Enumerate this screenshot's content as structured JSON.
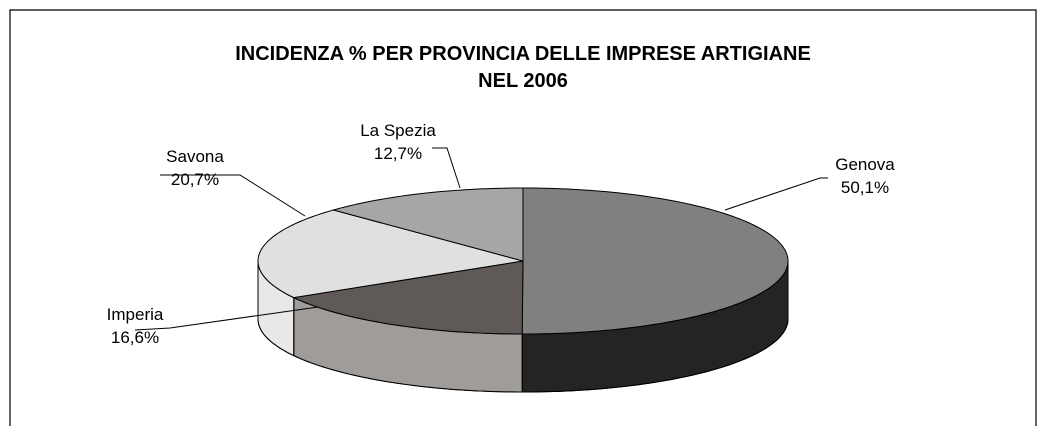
{
  "chart_data": {
    "type": "pie",
    "title": [
      "INCIDENZA % PER PROVINCIA DELLE IMPRESE ARTIGIANE",
      "NEL 2006"
    ],
    "categories": [
      "Genova",
      "Imperia",
      "Savona",
      "La Spezia"
    ],
    "values": [
      50.1,
      16.6,
      20.7,
      12.7
    ],
    "value_labels": [
      "50,1%",
      "16,6%",
      "20,7%",
      "12,7%"
    ],
    "colors": [
      "#808080",
      "#5f5a58",
      "#e0e0e0",
      "#a6a6a6"
    ]
  }
}
